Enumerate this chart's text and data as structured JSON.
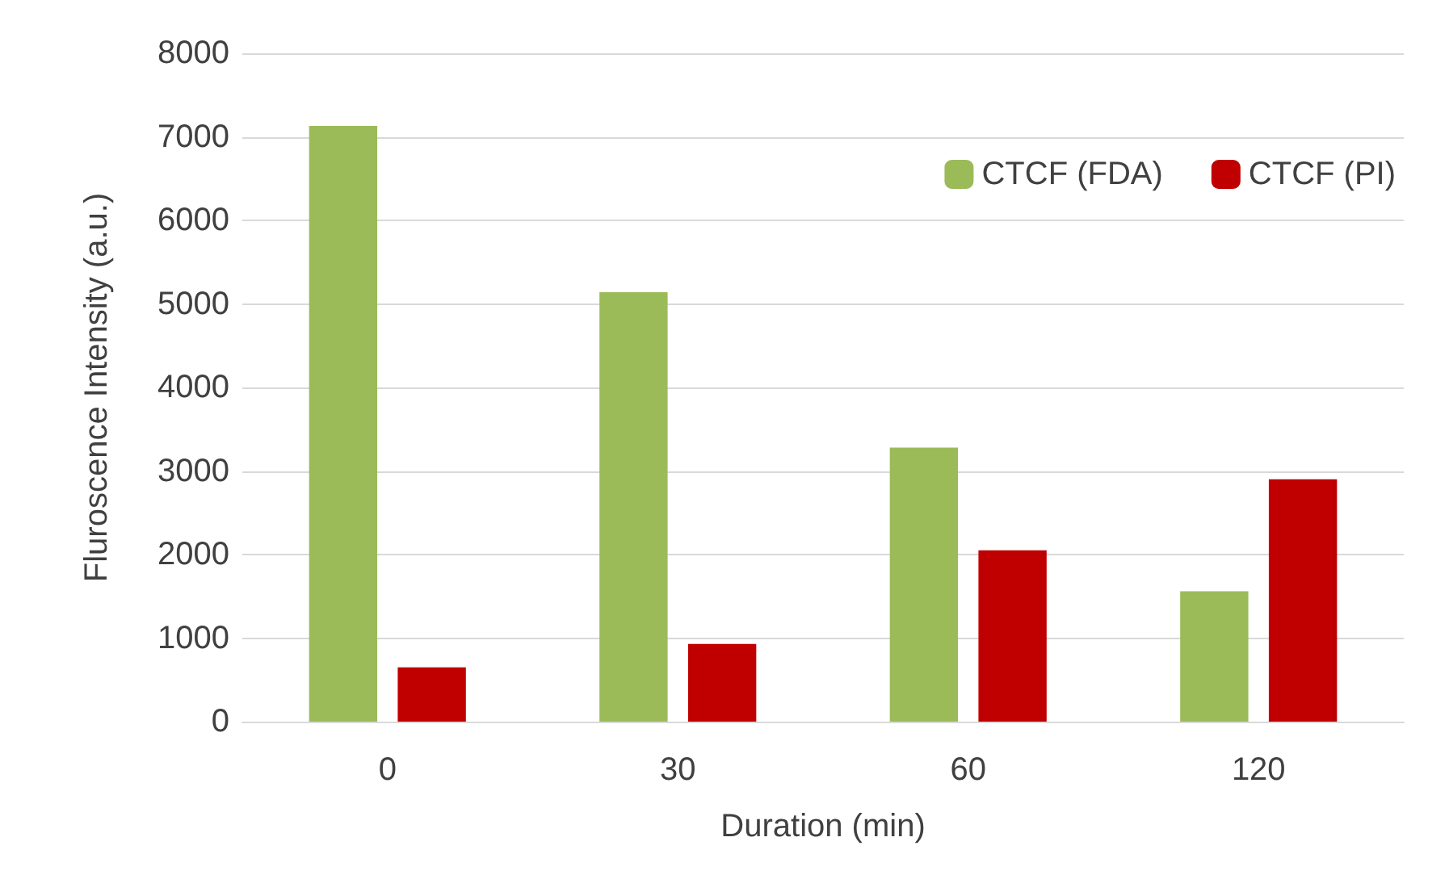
{
  "chart_data": {
    "type": "bar",
    "xlabel": "Duration (min)",
    "ylabel": "Fluroscence Intensity (a.u.)",
    "categories": [
      "0",
      "30",
      "60",
      "120"
    ],
    "series": [
      {
        "name": "CTCF (FDA)",
        "color": "#9bbb59",
        "values": [
          7130,
          5140,
          3280,
          1560
        ]
      },
      {
        "name": "CTCF (PI)",
        "color": "#c00000",
        "values": [
          650,
          930,
          2050,
          2900
        ]
      }
    ],
    "ylim": [
      0,
      8000
    ],
    "yticks": [
      0,
      1000,
      2000,
      3000,
      4000,
      5000,
      6000,
      7000,
      8000
    ],
    "grid": "y",
    "legend": "top right"
  }
}
